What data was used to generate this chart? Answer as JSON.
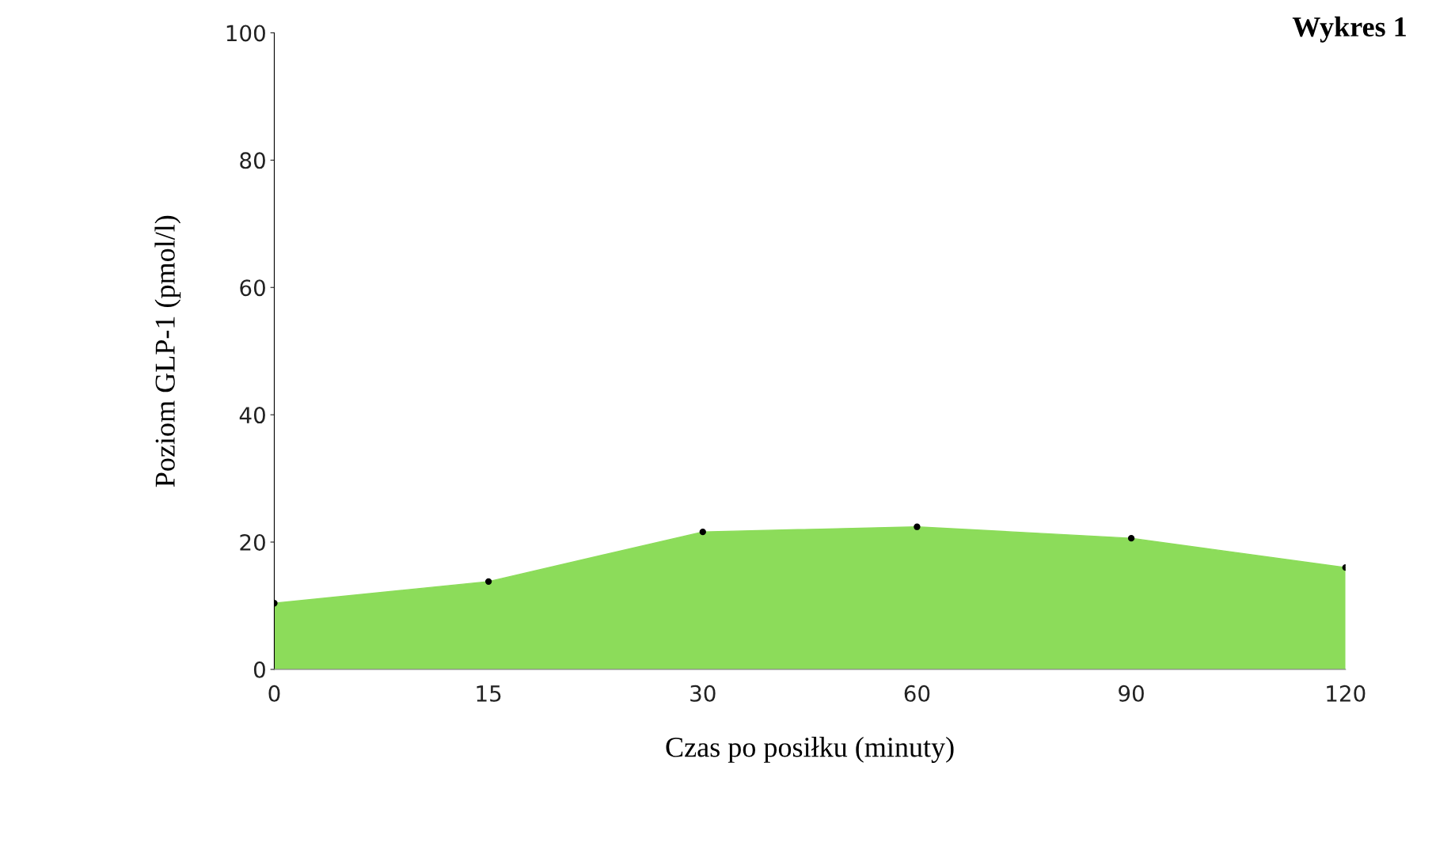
{
  "chart_data": {
    "type": "area",
    "title": "Wykres 1",
    "xlabel": "Czas po posiłku (minuty)",
    "ylabel": "Poziom GLP-1 (pmol/l)",
    "categories": [
      "0",
      "15",
      "30",
      "60",
      "90",
      "120"
    ],
    "series": [
      {
        "color": "#8cdc5a",
        "values": [
          10.4,
          13.8,
          21.6,
          22.4,
          20.6,
          16.0
        ]
      }
    ],
    "ylim": [
      0,
      100
    ],
    "yticks": [
      0,
      20,
      40,
      60,
      80,
      100
    ],
    "grid": false,
    "legend": false,
    "marker": "circle"
  }
}
